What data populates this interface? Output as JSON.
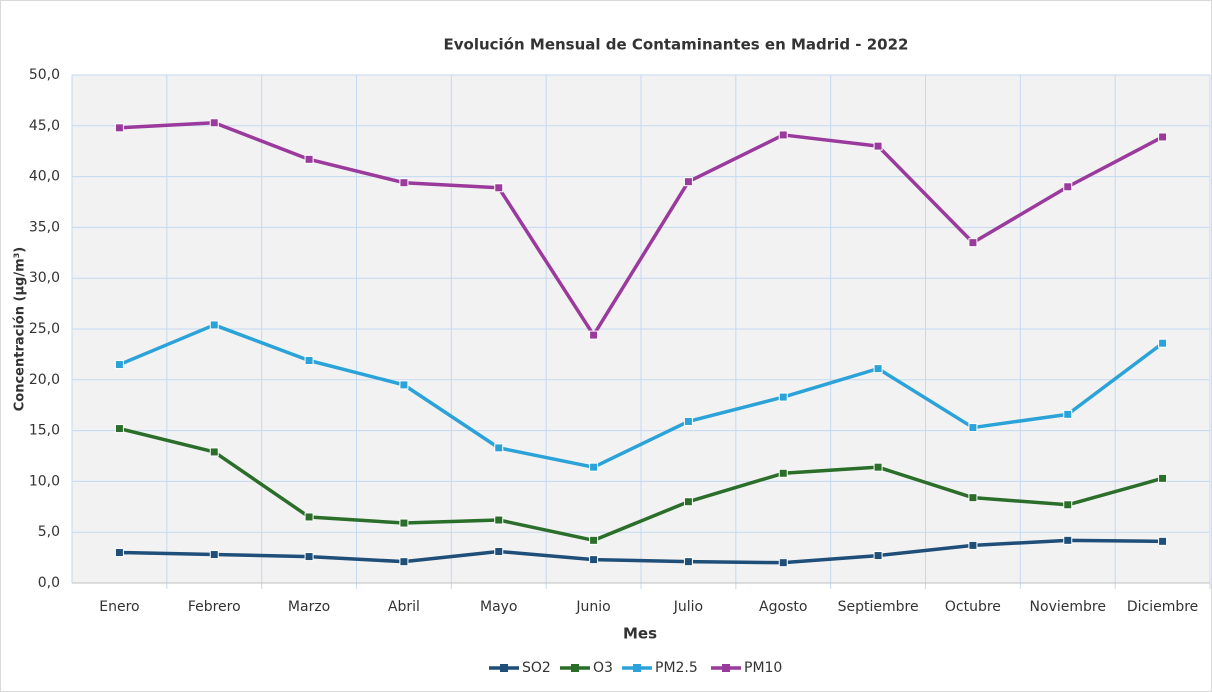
{
  "chart_data": {
    "type": "line",
    "title": "Evolución Mensual de Contaminantes en Madrid - 2022",
    "x_label": "Mes",
    "y_label": "Concentración (µg/m³)",
    "categories": [
      "Enero",
      "Febrero",
      "Marzo",
      "Abril",
      "Mayo",
      "Junio",
      "Julio",
      "Agosto",
      "Septiembre",
      "Octubre",
      "Noviembre",
      "Diciembre"
    ],
    "series": [
      {
        "name": "SO2",
        "color": "#1f4e79",
        "values": [
          3.0,
          2.8,
          2.6,
          2.1,
          3.1,
          2.3,
          2.1,
          2.0,
          2.7,
          3.7,
          4.2,
          4.1
        ]
      },
      {
        "name": "O3",
        "color": "#2a6e2a",
        "values": [
          15.2,
          12.9,
          6.5,
          5.9,
          6.2,
          4.2,
          8.0,
          10.8,
          11.4,
          8.4,
          7.7,
          10.3
        ]
      },
      {
        "name": "PM2.5",
        "color": "#2ba3d8",
        "values": [
          21.5,
          25.4,
          21.9,
          19.5,
          13.3,
          11.4,
          15.9,
          18.3,
          21.1,
          15.3,
          16.6,
          23.6
        ]
      },
      {
        "name": "PM10",
        "color": "#9a3a9c",
        "values": [
          44.8,
          45.3,
          41.7,
          39.4,
          38.9,
          24.4,
          39.5,
          44.1,
          43.0,
          33.5,
          39.0,
          43.9
        ]
      }
    ],
    "ylim": [
      0,
      50
    ],
    "yticks": [
      {
        "value": 0,
        "label": "0,0"
      },
      {
        "value": 5,
        "label": "5,0"
      },
      {
        "value": 10,
        "label": "10,0"
      },
      {
        "value": 15,
        "label": "15,0"
      },
      {
        "value": 20,
        "label": "20,0"
      },
      {
        "value": 25,
        "label": "25,0"
      },
      {
        "value": 30,
        "label": "30,0"
      },
      {
        "value": 35,
        "label": "35,0"
      },
      {
        "value": 40,
        "label": "40,0"
      },
      {
        "value": 45,
        "label": "45,0"
      },
      {
        "value": 50,
        "label": "50,0"
      }
    ],
    "grid": true,
    "legend": "bottom"
  }
}
